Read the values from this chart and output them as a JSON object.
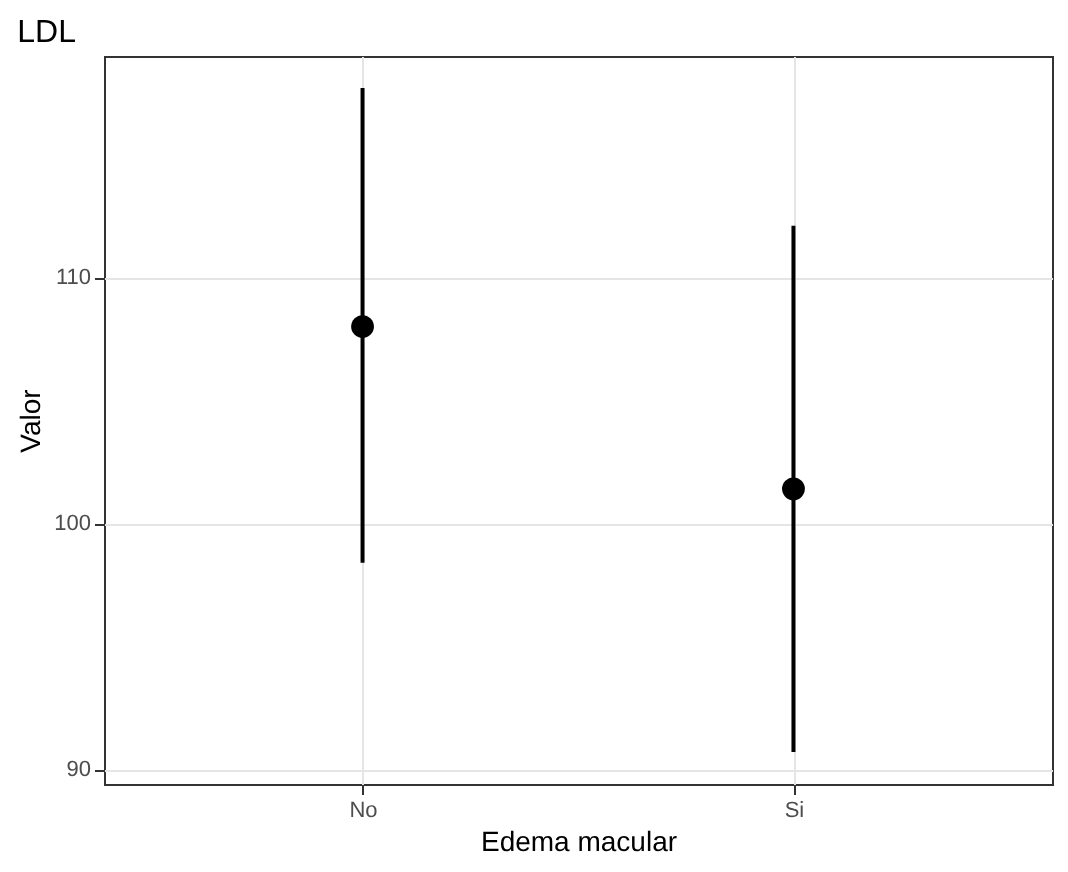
{
  "chart_data": {
    "type": "scatter",
    "title": "LDL",
    "xlabel": "Edema macular",
    "ylabel": "Valor",
    "categories": [
      "No",
      "Si"
    ],
    "series": [
      {
        "color": "#000000",
        "values": [
          108.0,
          101.4
        ],
        "errors": [
          [
            98.4,
            117.7
          ],
          [
            90.7,
            112.1
          ]
        ]
      }
    ],
    "ylim": [
      89.4,
      119.0
    ],
    "yticks": [
      90,
      100,
      110
    ],
    "grid": true,
    "marker": "circle"
  }
}
